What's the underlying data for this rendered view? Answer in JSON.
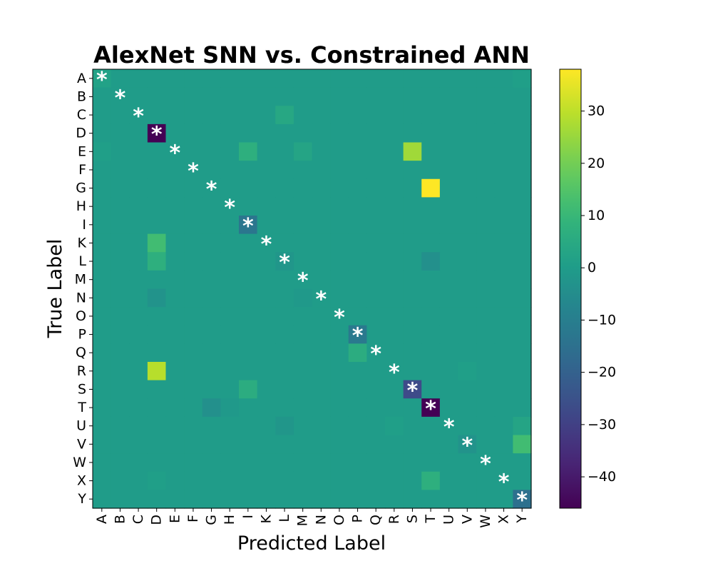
{
  "chart_data": {
    "type": "heatmap",
    "title": "AlexNet SNN vs. Constrained ANN",
    "xlabel": "Predicted Label",
    "ylabel": "True Label",
    "x_categories": [
      "A",
      "B",
      "C",
      "D",
      "E",
      "F",
      "G",
      "H",
      "I",
      "K",
      "L",
      "M",
      "N",
      "O",
      "P",
      "Q",
      "R",
      "S",
      "T",
      "U",
      "V",
      "W",
      "X",
      "Y"
    ],
    "y_categories": [
      "A",
      "B",
      "C",
      "D",
      "E",
      "F",
      "G",
      "H",
      "I",
      "K",
      "L",
      "M",
      "N",
      "O",
      "P",
      "Q",
      "R",
      "S",
      "T",
      "U",
      "V",
      "W",
      "X",
      "Y"
    ],
    "colormap": "viridis",
    "color_range": [
      -46,
      38
    ],
    "colorbar_ticks": [
      30,
      20,
      10,
      0,
      -10,
      -20,
      -30,
      -40
    ],
    "diagonal_marker": "*",
    "cells": [
      {
        "row": "A",
        "col": "A",
        "value": 2
      },
      {
        "row": "A",
        "col": "Y",
        "value": 1
      },
      {
        "row": "C",
        "col": "L",
        "value": 4
      },
      {
        "row": "D",
        "col": "D",
        "value": -46
      },
      {
        "row": "E",
        "col": "A",
        "value": 1
      },
      {
        "row": "E",
        "col": "I",
        "value": 7
      },
      {
        "row": "E",
        "col": "M",
        "value": 3
      },
      {
        "row": "E",
        "col": "S",
        "value": 26
      },
      {
        "row": "G",
        "col": "T",
        "value": 38
      },
      {
        "row": "I",
        "col": "I",
        "value": -13
      },
      {
        "row": "K",
        "col": "D",
        "value": 12
      },
      {
        "row": "L",
        "col": "D",
        "value": 7
      },
      {
        "row": "L",
        "col": "L",
        "value": -2
      },
      {
        "row": "L",
        "col": "T",
        "value": -4
      },
      {
        "row": "N",
        "col": "D",
        "value": -3
      },
      {
        "row": "N",
        "col": "M",
        "value": -1
      },
      {
        "row": "P",
        "col": "P",
        "value": -12
      },
      {
        "row": "Q",
        "col": "P",
        "value": 6
      },
      {
        "row": "R",
        "col": "D",
        "value": 29
      },
      {
        "row": "R",
        "col": "V",
        "value": 1
      },
      {
        "row": "S",
        "col": "I",
        "value": 6
      },
      {
        "row": "S",
        "col": "S",
        "value": -27
      },
      {
        "row": "T",
        "col": "G",
        "value": -4
      },
      {
        "row": "T",
        "col": "H",
        "value": -1
      },
      {
        "row": "T",
        "col": "T",
        "value": -46
      },
      {
        "row": "U",
        "col": "L",
        "value": -2
      },
      {
        "row": "U",
        "col": "R",
        "value": 1
      },
      {
        "row": "U",
        "col": "Y",
        "value": 3
      },
      {
        "row": "V",
        "col": "V",
        "value": -3
      },
      {
        "row": "V",
        "col": "Y",
        "value": 12
      },
      {
        "row": "X",
        "col": "D",
        "value": 1
      },
      {
        "row": "X",
        "col": "T",
        "value": 7
      },
      {
        "row": "Y",
        "col": "Y",
        "value": -15
      }
    ]
  }
}
